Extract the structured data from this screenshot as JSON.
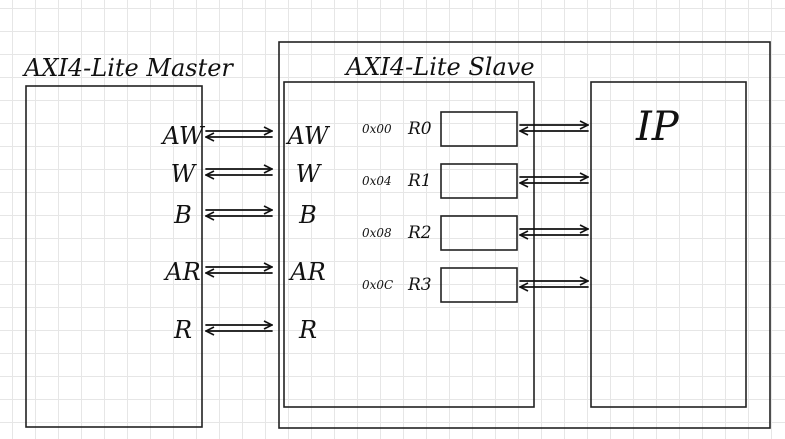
{
  "master": {
    "title": "AXI4-Lite Master"
  },
  "slave": {
    "title": "AXI4-Lite Slave"
  },
  "ip": {
    "label": "IP"
  },
  "channels": [
    "AW",
    "W",
    "B",
    "AR",
    "R"
  ],
  "registers": [
    {
      "address": "0x00",
      "name": "R0"
    },
    {
      "address": "0x04",
      "name": "R1"
    },
    {
      "address": "0x08",
      "name": "R2"
    },
    {
      "address": "0x0C",
      "name": "R3"
    }
  ]
}
